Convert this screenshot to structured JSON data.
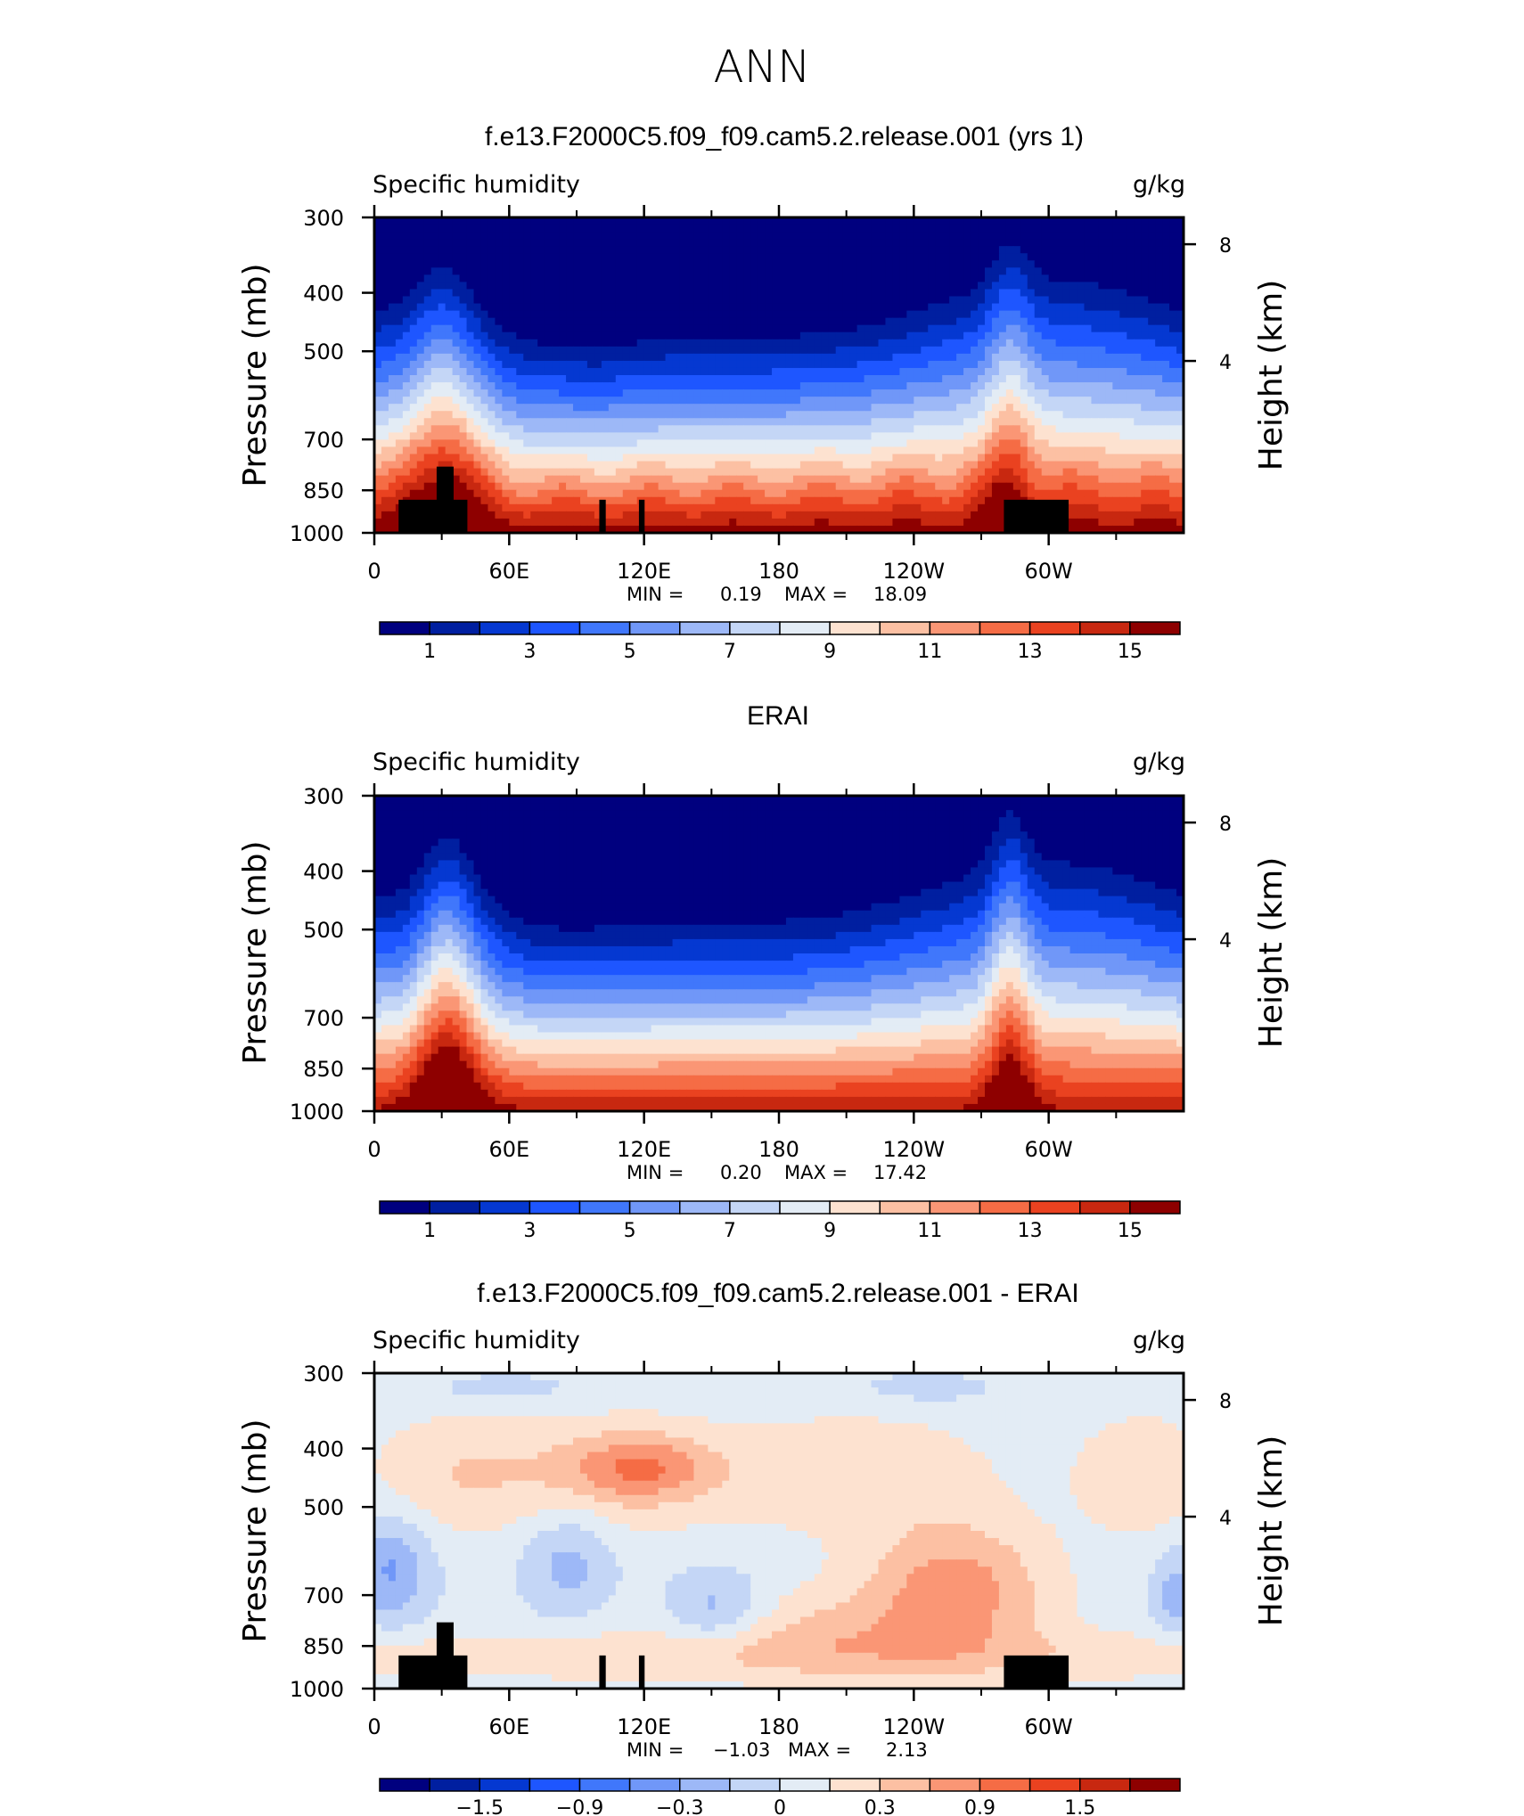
{
  "page": {
    "title": "ANN"
  },
  "chart_data": [
    {
      "type": "heatmap",
      "title": "f.e13.F2000C5.f09_f09.cam5.2.release.001 (yrs 1)",
      "subtitle_left": "Specific humidity",
      "subtitle_right": "g/kg",
      "ylabel": "Pressure (mb)",
      "ylabel_right": "Height (km)",
      "xticks": [
        "0",
        "60E",
        "120E",
        "180",
        "120W",
        "60W"
      ],
      "yticks": [
        "300",
        "400",
        "500",
        "700",
        "850",
        "1000"
      ],
      "yticks_right": [
        "8",
        "4"
      ],
      "min_label": "MIN =",
      "min_value": "0.19",
      "max_label": "MAX =",
      "max_value": "18.09",
      "colorbar_labels": [
        "1",
        "3",
        "5",
        "7",
        "9",
        "11",
        "13",
        "15"
      ],
      "field": "model"
    },
    {
      "type": "heatmap",
      "title": "ERAI",
      "subtitle_left": "Specific humidity",
      "subtitle_right": "g/kg",
      "ylabel": "Pressure (mb)",
      "ylabel_right": "Height (km)",
      "xticks": [
        "0",
        "60E",
        "120E",
        "180",
        "120W",
        "60W"
      ],
      "yticks": [
        "300",
        "400",
        "500",
        "700",
        "850",
        "1000"
      ],
      "yticks_right": [
        "8",
        "4"
      ],
      "min_label": "MIN =",
      "min_value": "0.20",
      "max_label": "MAX =",
      "max_value": "17.42",
      "colorbar_labels": [
        "1",
        "3",
        "5",
        "7",
        "9",
        "11",
        "13",
        "15"
      ],
      "field": "obs"
    },
    {
      "type": "heatmap",
      "title": "f.e13.F2000C5.f09_f09.cam5.2.release.001 - ERAI",
      "subtitle_left": "Specific humidity",
      "subtitle_right": "g/kg",
      "ylabel": "Pressure (mb)",
      "ylabel_right": "Height (km)",
      "xticks": [
        "0",
        "60E",
        "120E",
        "180",
        "120W",
        "60W"
      ],
      "yticks": [
        "300",
        "400",
        "500",
        "700",
        "850",
        "1000"
      ],
      "yticks_right": [
        "8",
        "4"
      ],
      "min_label": "MIN =",
      "min_value": "−1.03",
      "max_label": "MAX =",
      "max_value": "2.13",
      "colorbar_labels": [
        "−1.5",
        "−0.9",
        "−0.3",
        "0",
        "0.3",
        "0.9",
        "1.5"
      ],
      "field": "diff"
    }
  ],
  "palette": [
    "#00007f",
    "#001fa0",
    "#0538d1",
    "#1e56ff",
    "#4077fb",
    "#7097f8",
    "#9db8f7",
    "#c4d6f6",
    "#e3ecf5",
    "#fde2d0",
    "#fcc0a3",
    "#fa9675",
    "#f56c45",
    "#ea4220",
    "#c82810",
    "#8e0000"
  ],
  "colors": {
    "topography": "#000000",
    "background": "#ffffff"
  }
}
